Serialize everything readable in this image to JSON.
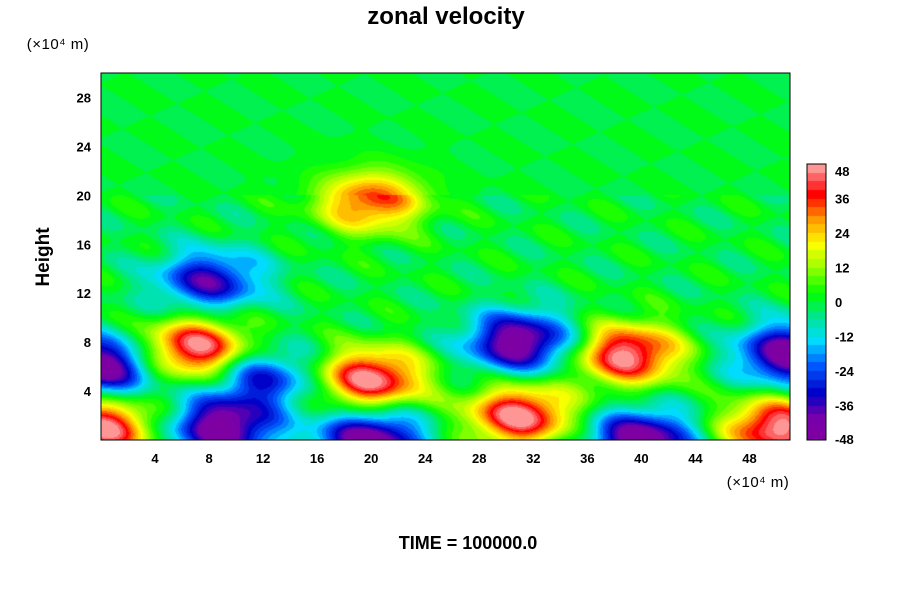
{
  "chart_data": {
    "type": "heatmap",
    "title": "zonal velocity",
    "ylabel": "Height",
    "x_unit": "(×10⁴ m)",
    "y_unit": "(×10⁴ m)",
    "footer": "TIME = 100000.0",
    "xlim": [
      0,
      51
    ],
    "ylim": [
      0,
      30
    ],
    "x_ticks": [
      4,
      8,
      12,
      16,
      20,
      24,
      28,
      32,
      36,
      40,
      44,
      48
    ],
    "y_ticks": [
      4,
      8,
      12,
      16,
      20,
      24,
      28
    ],
    "colorbar": {
      "min": -48,
      "max": 48,
      "step": 6,
      "ticks": [
        48,
        36,
        24,
        12,
        0,
        -12,
        -24,
        -36,
        -48
      ]
    },
    "features": [
      {
        "x": 3,
        "y": 31,
        "z": 0
      },
      {
        "x": 7,
        "y": 7.5,
        "z": 48
      },
      {
        "x": 20,
        "y": 5,
        "z": 48
      },
      {
        "x": 39,
        "y": 7,
        "z": 48
      },
      {
        "x": 31,
        "y": 8,
        "z": -48
      },
      {
        "x": 51,
        "y": 7,
        "z": -48
      },
      {
        "x": 0,
        "y": 6,
        "z": -48
      },
      {
        "x": 9,
        "y": 1,
        "z": -48
      },
      {
        "x": 20,
        "y": 0,
        "z": -48
      },
      {
        "x": 40,
        "y": 0,
        "z": -48
      },
      {
        "x": 31,
        "y": 2,
        "z": 48
      },
      {
        "x": 0,
        "y": 1,
        "z": 48
      },
      {
        "x": 50,
        "y": 1,
        "z": 48
      },
      {
        "x": 20,
        "y": 19.5,
        "z": 36
      },
      {
        "x": 8,
        "y": 13,
        "z": -36
      },
      {
        "x": 12,
        "y": 5,
        "z": -30
      }
    ]
  }
}
